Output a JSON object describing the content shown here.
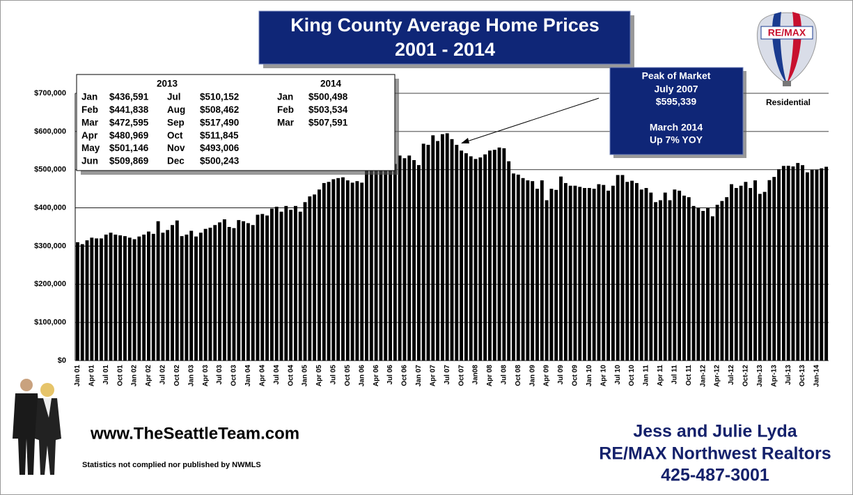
{
  "chart_data": {
    "type": "bar",
    "title": [
      "King County Average Home Prices",
      "2001 - 2014"
    ],
    "categories": [
      "Jan 01",
      null,
      null,
      "Apr 01",
      null,
      null,
      "Jul 01",
      null,
      null,
      "Oct 01",
      null,
      null,
      "Jan 02",
      null,
      null,
      "Apr 02",
      null,
      null,
      "Jul 02",
      null,
      null,
      "Oct 02",
      null,
      null,
      "Jan 03",
      null,
      null,
      "Apr 03",
      null,
      null,
      "Jul 03",
      null,
      null,
      "Oct 03",
      null,
      null,
      "Jan 04",
      null,
      null,
      "Apr 04",
      null,
      null,
      "Jul 04",
      null,
      null,
      "Oct 04",
      null,
      null,
      "Jan 05",
      null,
      null,
      "Apr 05",
      null,
      null,
      "Jul 05",
      null,
      null,
      "Oct 05",
      null,
      null,
      "Jan 06",
      null,
      null,
      "Apr 06",
      null,
      null,
      "Jul 06",
      null,
      null,
      "Oct 06",
      null,
      null,
      "Jan 07",
      null,
      null,
      "Apr 07",
      null,
      null,
      "Jul 07",
      null,
      null,
      "Oct 07",
      null,
      null,
      "Jan08",
      null,
      null,
      "Apr 08",
      null,
      null,
      "Jul 08",
      null,
      null,
      "Oct 08",
      null,
      null,
      "Jan 09",
      null,
      null,
      "Apr 09",
      null,
      null,
      "Jul 09",
      null,
      null,
      "Oct 09",
      null,
      null,
      "Jan 10",
      null,
      null,
      "Apr 10",
      null,
      null,
      "Jul 10",
      null,
      null,
      "Oct 10",
      null,
      null,
      "Jan 11",
      null,
      null,
      "Apr 11",
      null,
      null,
      "Jul 11",
      null,
      null,
      "Oct 11",
      null,
      null,
      "Jan-12",
      null,
      null,
      "Apr-12",
      null,
      null,
      "Jul-12",
      null,
      null,
      "Oct-12",
      null,
      null,
      "Jan-13",
      null,
      null,
      "Apr-13",
      null,
      null,
      "Jul-13",
      null,
      null,
      "Oct-13",
      null,
      null,
      "Jan-14",
      null,
      null
    ],
    "values": [
      310000,
      305000,
      315000,
      322000,
      320000,
      320000,
      330000,
      335000,
      330000,
      328000,
      326000,
      322000,
      318000,
      325000,
      330000,
      338000,
      332000,
      365000,
      335000,
      342000,
      355000,
      367000,
      326000,
      330000,
      340000,
      325000,
      335000,
      345000,
      348000,
      355000,
      362000,
      370000,
      350000,
      347000,
      368000,
      365000,
      360000,
      355000,
      382000,
      384000,
      380000,
      398000,
      403000,
      390000,
      405000,
      395000,
      405000,
      390000,
      415000,
      430000,
      435000,
      448000,
      465000,
      468000,
      475000,
      478000,
      480000,
      472000,
      466000,
      470000,
      466000,
      500000,
      520000,
      525000,
      530000,
      535000,
      530000,
      515000,
      537000,
      530000,
      537000,
      525000,
      512000,
      568000,
      565000,
      590000,
      575000,
      593000,
      595339,
      580000,
      565000,
      550000,
      543000,
      535000,
      528000,
      532000,
      540000,
      550000,
      552000,
      558000,
      556000,
      522000,
      490000,
      487000,
      478000,
      472000,
      470000,
      450000,
      472000,
      420000,
      450000,
      447000,
      482000,
      465000,
      458000,
      458000,
      455000,
      452000,
      452000,
      450000,
      462000,
      460000,
      445000,
      458000,
      486000,
      486000,
      468000,
      471000,
      465000,
      448000,
      452000,
      440000,
      415000,
      420000,
      440000,
      420000,
      448000,
      445000,
      432000,
      428000,
      405000,
      400000,
      392000,
      400000,
      378000,
      408000,
      418000,
      428000,
      462000,
      452000,
      458000,
      468000,
      452000,
      472000,
      436591,
      441838,
      472595,
      480969,
      501146,
      509869,
      510152,
      508462,
      517490,
      511845,
      493006,
      500243,
      500498,
      503534,
      507591
    ],
    "color": "#000000",
    "ylim": [
      0,
      700000
    ],
    "yticks": [
      {
        "value": 0,
        "label": "$0"
      },
      {
        "value": 100000,
        "label": "$100,000"
      },
      {
        "value": 200000,
        "label": "$200,000"
      },
      {
        "value": 300000,
        "label": "$300,000"
      },
      {
        "value": 400000,
        "label": "$400,000"
      },
      {
        "value": 500000,
        "label": "$500,000"
      },
      {
        "value": 600000,
        "label": "$600,000"
      },
      {
        "value": 700000,
        "label": "$700,000"
      }
    ],
    "grid": true,
    "series_label": "Residential",
    "annotation": [
      "Peak of Market",
      "July 2007",
      "$595,339",
      "March 2014",
      "Up 7% YOY"
    ]
  },
  "inset": {
    "year_a": "2013",
    "rows_a": [
      [
        "Jan",
        "$436,591"
      ],
      [
        "Feb",
        "$441,838"
      ],
      [
        "Mar",
        "$472,595"
      ],
      [
        "Apr",
        "$480,969"
      ],
      [
        "May",
        "$501,146"
      ],
      [
        "Jun",
        "$509,869"
      ],
      [
        "Jul",
        "$510,152"
      ],
      [
        "Aug",
        "$508,462"
      ],
      [
        "Sep",
        "$517,490"
      ],
      [
        "Oct",
        "$511,845"
      ],
      [
        "Nov",
        "$493,006"
      ],
      [
        "Dec",
        "$500,243"
      ]
    ],
    "year_b": "2014",
    "rows_b": [
      [
        "Jan",
        "$500,498"
      ],
      [
        "Feb",
        "$503,534"
      ],
      [
        "Mar",
        "$507,591"
      ]
    ]
  },
  "logo": "RE/MAX",
  "footer": {
    "website": "www.TheSeattleTeam.com",
    "note": "Statistics not complied nor published by NWMLS",
    "agent": [
      "Jess and Julie Lyda",
      "RE/MAX Northwest Realtors",
      "425-487-3001"
    ]
  }
}
